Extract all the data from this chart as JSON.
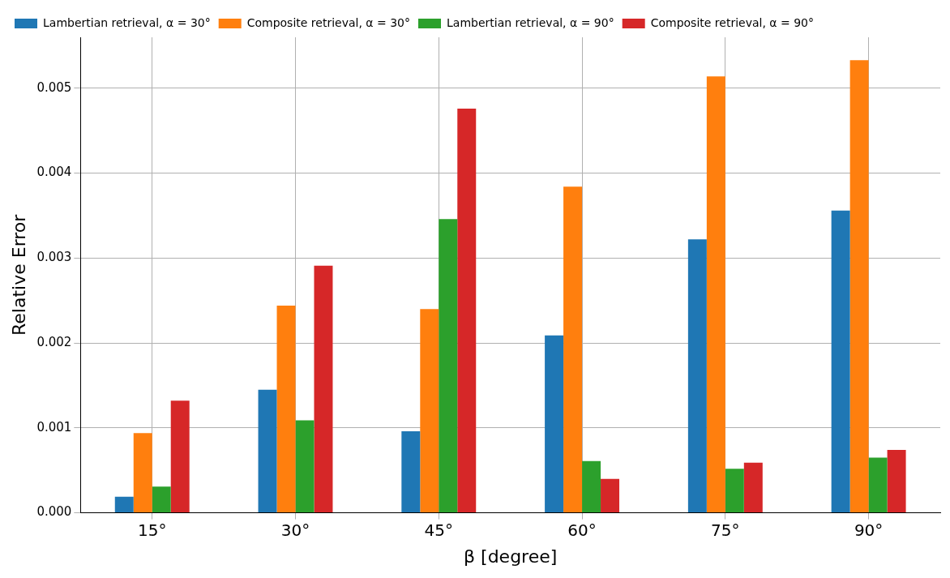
{
  "chart_data": {
    "type": "bar",
    "xlabel": "β [degree]",
    "ylabel": "Relative Error",
    "categories": [
      "15°",
      "30°",
      "45°",
      "60°",
      "75°",
      "90°"
    ],
    "series": [
      {
        "name": "Lambertian retrieval, α = 30°",
        "color": "#1f77b4",
        "values": [
          0.00019,
          0.00145,
          0.00096,
          0.00209,
          0.00322,
          0.00356
        ]
      },
      {
        "name": "Composite retrieval, α = 30°",
        "color": "#ff7f0e",
        "values": [
          0.00094,
          0.00244,
          0.0024,
          0.00384,
          0.00514,
          0.00533
        ]
      },
      {
        "name": "Lambertian retrieval, α = 90°",
        "color": "#2ca02c",
        "values": [
          0.00031,
          0.00109,
          0.00346,
          0.00061,
          0.00052,
          0.00065
        ]
      },
      {
        "name": "Composite retrieval, α = 90°",
        "color": "#d62728",
        "values": [
          0.00132,
          0.00291,
          0.00476,
          0.0004,
          0.00059,
          0.00074
        ]
      }
    ],
    "ylim": [
      0,
      0.0056
    ],
    "yticks": [
      {
        "value": 0,
        "label": "0.000"
      },
      {
        "value": 0.001,
        "label": "0.001"
      },
      {
        "value": 0.002,
        "label": "0.002"
      },
      {
        "value": 0.003,
        "label": "0.003"
      },
      {
        "value": 0.004,
        "label": "0.004"
      },
      {
        "value": 0.005,
        "label": "0.005"
      }
    ],
    "grid": true,
    "legend": "top left"
  }
}
